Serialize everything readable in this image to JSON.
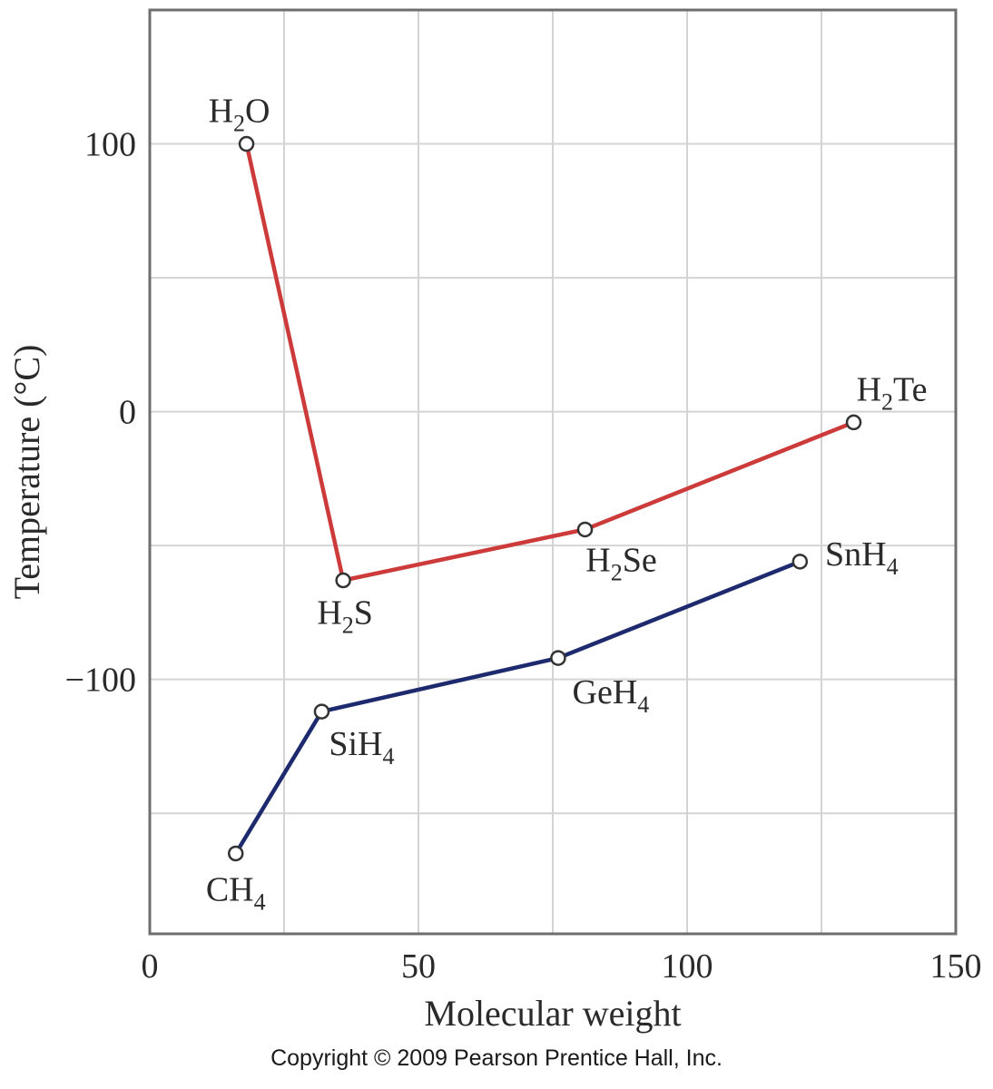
{
  "chart_data": {
    "type": "line",
    "xlabel": "Molecular weight",
    "ylabel": "Temperature (°C)",
    "xlim": [
      0,
      150
    ],
    "ylim": [
      -195,
      150
    ],
    "x_ticks": [
      0,
      50,
      100,
      150
    ],
    "y_ticks": [
      100,
      0,
      -100
    ],
    "y_tick_labels": [
      "100",
      "0",
      "−100"
    ],
    "grid": true,
    "series": [
      {
        "color": "#cc3a3a",
        "points": [
          {
            "label": "H",
            "sub": "2",
            "suffix": "O",
            "x": 18,
            "y": 100
          },
          {
            "label": "H",
            "sub": "2",
            "suffix": "S",
            "x": 36,
            "y": -63
          },
          {
            "label": "H",
            "sub": "2",
            "suffix": "Se",
            "x": 81,
            "y": -44
          },
          {
            "label": "H",
            "sub": "2",
            "suffix": "Te",
            "x": 131,
            "y": -4
          }
        ]
      },
      {
        "color": "#1e2a6e",
        "points": [
          {
            "label": "CH",
            "sub": "4",
            "suffix": "",
            "x": 16,
            "y": -165
          },
          {
            "label": "SiH",
            "sub": "4",
            "suffix": "",
            "x": 32,
            "y": -112
          },
          {
            "label": "GeH",
            "sub": "4",
            "suffix": "",
            "x": 76,
            "y": -92
          },
          {
            "label": "SnH",
            "sub": "4",
            "suffix": "",
            "x": 121,
            "y": -56
          }
        ]
      }
    ]
  },
  "footer": {
    "copyright": "Copyright © 2009 Pearson Prentice Hall, Inc."
  }
}
